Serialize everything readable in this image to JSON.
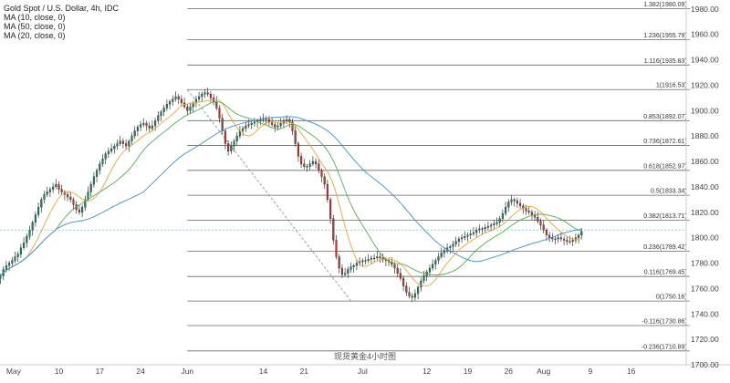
{
  "chart_data": {
    "type": "candlestick",
    "title": "Gold Spot / U.S. Dollar, 4h, IDC",
    "indicators": [
      "MA (10, close, 0)",
      "MA (50, close, 0)",
      "MA (20, close, 0)"
    ],
    "caption": "现货黄金4小时图",
    "ylim": [
      1700,
      1987
    ],
    "y_ticks": [
      "1980.00",
      "1960.00",
      "1940.00",
      "1920.00",
      "1900.00",
      "1880.00",
      "1860.00",
      "1840.00",
      "1820.00",
      "1800.00",
      "1780.00",
      "1760.00",
      "1740.00",
      "1720.00",
      "1700.00"
    ],
    "y_tick_values": [
      1980,
      1960,
      1940,
      1920,
      1900,
      1880,
      1860,
      1840,
      1820,
      1800,
      1780,
      1760,
      1740,
      1720,
      1700
    ],
    "x_ticks": [
      "May",
      "10",
      "17",
      "24",
      "Jun",
      "14",
      "21",
      "Jul",
      "12",
      "19",
      "26",
      "Aug",
      "9",
      "16"
    ],
    "x_tick_days": [
      1,
      10,
      17,
      24,
      32,
      45,
      52,
      62,
      73,
      80,
      87,
      93,
      101,
      108
    ],
    "current_price": 1806,
    "fibonacci": {
      "start_day": 32,
      "end_day": 118,
      "levels": [
        {
          "label": "1.382(1980.09)",
          "value": 1980.09
        },
        {
          "label": "1.236(1955.79)",
          "value": 1955.79
        },
        {
          "label": "1.116(1935.83)",
          "value": 1935.83
        },
        {
          "label": "1(1916.53)",
          "value": 1916.53
        },
        {
          "label": "0.853(1892.07)",
          "value": 1892.07
        },
        {
          "label": "0.736(1872.61)",
          "value": 1872.61
        },
        {
          "label": "0.618(1852.97)",
          "value": 1852.97
        },
        {
          "label": "0.5(1833.34)",
          "value": 1833.34
        },
        {
          "label": "0.382(1813.71)",
          "value": 1813.71
        },
        {
          "label": "0.236(1789.42)",
          "value": 1789.42
        },
        {
          "label": "0.116(1769.45)",
          "value": 1769.45
        },
        {
          "label": "0(1750.16)",
          "value": 1750.16
        },
        {
          "label": "-0.116(1730.86)",
          "value": 1730.86
        },
        {
          "label": "-0.236(1710.89)",
          "value": 1710.89
        }
      ]
    },
    "trend_line": {
      "from": [
        32,
        1916.5
      ],
      "to": [
        60,
        1750.2
      ]
    },
    "series": [
      {
        "name": "Price",
        "type": "candle",
        "x_start": 0,
        "step": 0.5,
        "close": [
          1770,
          1775,
          1778,
          1780,
          1782,
          1785,
          1787,
          1792,
          1796,
          1801,
          1806,
          1812,
          1818,
          1824,
          1830,
          1834,
          1836,
          1838,
          1840,
          1842,
          1838,
          1836,
          1834,
          1832,
          1830,
          1826,
          1822,
          1820,
          1824,
          1830,
          1836,
          1842,
          1848,
          1853,
          1858,
          1862,
          1866,
          1868,
          1870,
          1872,
          1874,
          1876,
          1874,
          1872,
          1876,
          1880,
          1884,
          1887,
          1889,
          1890,
          1888,
          1886,
          1888,
          1892,
          1896,
          1899,
          1902,
          1905,
          1907,
          1909,
          1911,
          1909,
          1906,
          1903,
          1900,
          1903,
          1906,
          1909,
          1911,
          1913,
          1914,
          1913,
          1910,
          1907,
          1902,
          1894,
          1884,
          1874,
          1868,
          1872,
          1876,
          1880,
          1884,
          1886,
          1888,
          1889,
          1890,
          1891,
          1892,
          1893,
          1894,
          1893,
          1891,
          1889,
          1887,
          1888,
          1890,
          1892,
          1893,
          1891,
          1884,
          1874,
          1864,
          1858,
          1856,
          1856,
          1858,
          1860,
          1858,
          1853,
          1848,
          1842,
          1830,
          1815,
          1798,
          1785,
          1776,
          1771,
          1772,
          1775,
          1777,
          1778,
          1780,
          1781,
          1782,
          1782,
          1783,
          1784,
          1784,
          1785,
          1784,
          1783,
          1782,
          1781,
          1779,
          1776,
          1772,
          1768,
          1762,
          1757,
          1754,
          1753,
          1756,
          1761,
          1766,
          1770,
          1773,
          1776,
          1779,
          1782,
          1785,
          1788,
          1790,
          1792,
          1793,
          1795,
          1797,
          1799,
          1800,
          1801,
          1802,
          1803,
          1804,
          1806,
          1807,
          1807,
          1808,
          1809,
          1810,
          1811,
          1812,
          1815,
          1819,
          1824,
          1828,
          1830,
          1829,
          1827,
          1825,
          1823,
          1821,
          1820,
          1818,
          1816,
          1813,
          1810,
          1806,
          1802,
          1800,
          1799,
          1799,
          1800,
          1799,
          1798,
          1797,
          1797,
          1798,
          1800,
          1802,
          1805
        ]
      }
    ]
  }
}
